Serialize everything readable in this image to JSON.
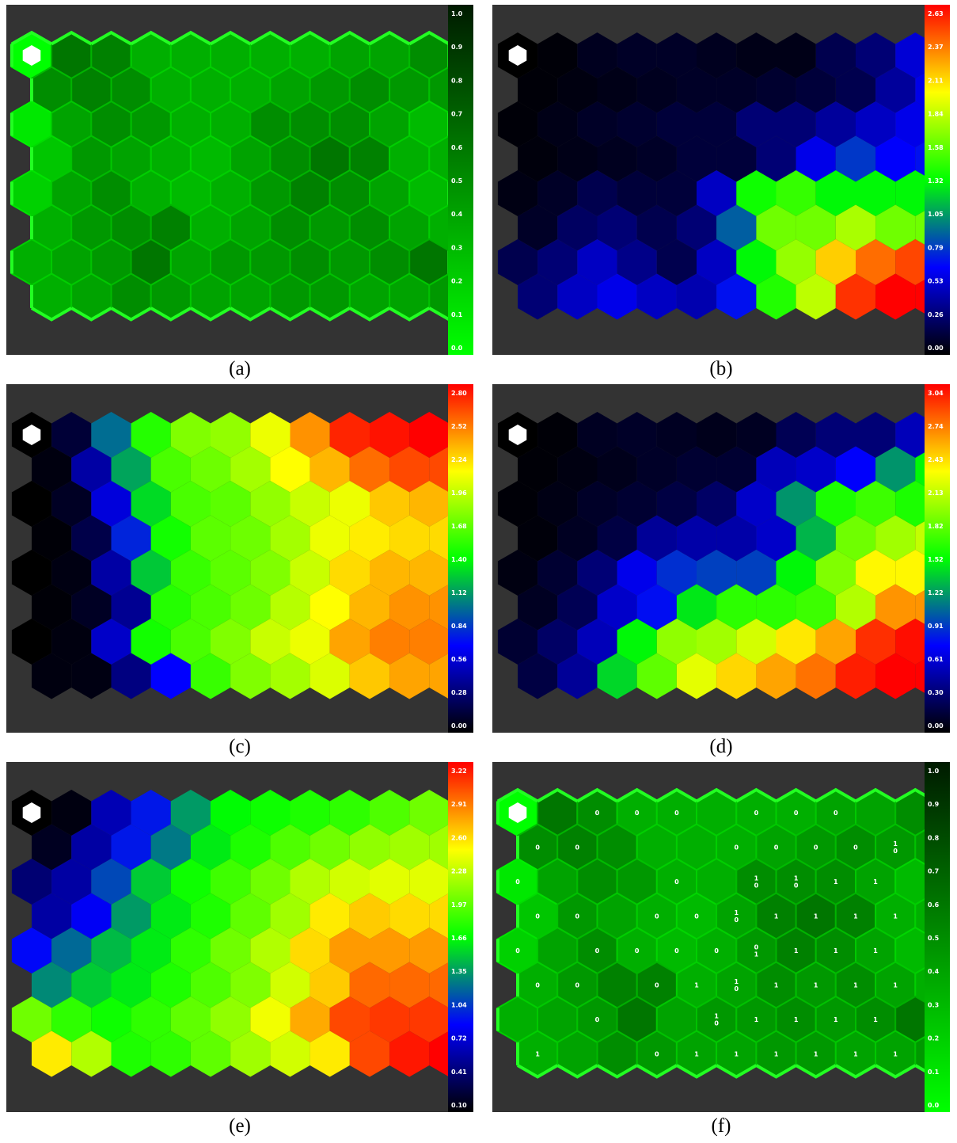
{
  "panels": [
    {
      "caption": "(a)",
      "kind": "umatrix",
      "scale": "green",
      "ticks": [
        "1.0",
        "0.9",
        "0.8",
        "0.7",
        "0.6",
        "0.5",
        "0.4",
        "0.3",
        "0.2",
        "0.1",
        "0.0"
      ],
      "grid": [
        [
          0.0,
          0.6,
          0.55,
          0.35,
          0.35,
          0.35,
          0.35,
          0.35,
          0.4,
          0.4,
          0.5
        ],
        [
          0.5,
          0.55,
          0.5,
          0.35,
          0.35,
          0.35,
          0.4,
          0.45,
          0.5,
          0.45,
          0.45
        ],
        [
          0.1,
          0.4,
          0.5,
          0.45,
          0.35,
          0.35,
          0.5,
          0.5,
          0.5,
          0.4,
          0.3
        ],
        [
          0.25,
          0.45,
          0.4,
          0.35,
          0.3,
          0.4,
          0.5,
          0.6,
          0.55,
          0.35,
          0.35
        ],
        [
          0.2,
          0.4,
          0.5,
          0.35,
          0.3,
          0.35,
          0.45,
          0.55,
          0.5,
          0.4,
          0.3
        ],
        [
          0.35,
          0.45,
          0.5,
          0.55,
          0.35,
          0.4,
          0.5,
          0.45,
          0.5,
          0.4,
          0.35
        ],
        [
          0.35,
          0.4,
          0.45,
          0.6,
          0.4,
          0.45,
          0.45,
          0.5,
          0.45,
          0.5,
          0.6
        ],
        [
          0.35,
          0.4,
          0.5,
          0.45,
          0.4,
          0.4,
          0.45,
          0.45,
          0.4,
          0.4,
          0.45
        ]
      ],
      "labels": []
    },
    {
      "caption": "(b)",
      "kind": "component",
      "scale": "jet",
      "ticks": [
        "2.63",
        "2.37",
        "2.11",
        "1.84",
        "1.58",
        "1.32",
        "1.05",
        "0.79",
        "0.53",
        "0.26",
        "0.00"
      ],
      "grid": [
        [
          0.0,
          0.02,
          0.08,
          0.1,
          0.1,
          0.08,
          0.06,
          0.06,
          0.2,
          0.3,
          0.55
        ],
        [
          0.02,
          0.04,
          0.06,
          0.08,
          0.1,
          0.1,
          0.12,
          0.15,
          0.2,
          0.4,
          0.6
        ],
        [
          0.02,
          0.06,
          0.1,
          0.12,
          0.15,
          0.15,
          0.3,
          0.3,
          0.4,
          0.5,
          0.6
        ],
        [
          0.03,
          0.06,
          0.08,
          0.1,
          0.15,
          0.15,
          0.3,
          0.6,
          0.8,
          0.65,
          0.7
        ],
        [
          0.05,
          0.1,
          0.2,
          0.15,
          0.15,
          0.5,
          1.35,
          1.45,
          1.3,
          1.3,
          1.3
        ],
        [
          0.1,
          0.25,
          0.3,
          0.2,
          0.3,
          0.9,
          1.6,
          1.6,
          1.75,
          1.6,
          1.6
        ],
        [
          0.2,
          0.3,
          0.5,
          0.35,
          0.2,
          0.5,
          1.3,
          1.7,
          2.1,
          2.35,
          2.45
        ],
        [
          0.3,
          0.5,
          0.6,
          0.5,
          0.45,
          0.7,
          1.4,
          1.8,
          2.5,
          2.63,
          2.63
        ]
      ],
      "labels": []
    },
    {
      "caption": "(c)",
      "kind": "component",
      "scale": "jet",
      "ticks": [
        "2.80",
        "2.52",
        "2.24",
        "1.96",
        "1.68",
        "1.40",
        "1.12",
        "0.84",
        "0.56",
        "0.28",
        "0.00"
      ],
      "grid": [
        [
          0.0,
          0.15,
          1.0,
          1.5,
          1.75,
          1.8,
          2.05,
          2.4,
          2.7,
          2.75,
          2.8
        ],
        [
          0.04,
          0.45,
          1.15,
          1.6,
          1.7,
          1.85,
          2.1,
          2.3,
          2.5,
          2.6,
          2.6
        ],
        [
          0.0,
          0.1,
          0.6,
          1.3,
          1.6,
          1.65,
          1.8,
          1.95,
          2.05,
          2.25,
          2.3
        ],
        [
          0.02,
          0.2,
          0.8,
          1.45,
          1.65,
          1.7,
          1.85,
          2.05,
          2.15,
          2.2,
          2.2
        ],
        [
          0.0,
          0.05,
          0.45,
          1.25,
          1.55,
          1.65,
          1.75,
          1.95,
          2.2,
          2.3,
          2.3
        ],
        [
          0.02,
          0.1,
          0.4,
          1.5,
          1.6,
          1.7,
          1.9,
          2.1,
          2.3,
          2.4,
          2.4
        ],
        [
          0.0,
          0.04,
          0.55,
          1.45,
          1.6,
          1.75,
          1.95,
          2.05,
          2.35,
          2.45,
          2.45
        ],
        [
          0.04,
          0.05,
          0.35,
          0.7,
          1.55,
          1.75,
          1.85,
          2.0,
          2.25,
          2.35,
          2.35
        ]
      ],
      "labels": []
    },
    {
      "caption": "(d)",
      "kind": "component",
      "scale": "jet",
      "ticks": [
        "3.04",
        "2.74",
        "2.43",
        "2.13",
        "1.82",
        "1.52",
        "1.22",
        "0.91",
        "0.61",
        "0.30",
        "0.00"
      ],
      "grid": [
        [
          0.0,
          0.02,
          0.1,
          0.12,
          0.1,
          0.08,
          0.1,
          0.25,
          0.35,
          0.35,
          0.55
        ],
        [
          0.02,
          0.05,
          0.08,
          0.12,
          0.15,
          0.15,
          0.55,
          0.6,
          0.75,
          1.2,
          1.5
        ],
        [
          0.02,
          0.06,
          0.12,
          0.15,
          0.2,
          0.3,
          0.6,
          1.2,
          1.6,
          1.7,
          1.6
        ],
        [
          0.03,
          0.1,
          0.2,
          0.45,
          0.5,
          0.5,
          0.6,
          1.3,
          1.85,
          2.0,
          2.1
        ],
        [
          0.05,
          0.15,
          0.35,
          0.7,
          0.9,
          0.95,
          0.95,
          1.5,
          1.9,
          2.3,
          2.3
        ],
        [
          0.1,
          0.25,
          0.6,
          0.8,
          1.45,
          1.65,
          1.65,
          1.7,
          2.05,
          2.6,
          2.6
        ],
        [
          0.15,
          0.3,
          0.55,
          1.5,
          1.95,
          2.0,
          2.15,
          2.35,
          2.55,
          2.9,
          3.0
        ],
        [
          0.2,
          0.45,
          1.4,
          1.8,
          2.2,
          2.4,
          2.55,
          2.7,
          2.95,
          3.04,
          3.04
        ]
      ],
      "labels": []
    },
    {
      "caption": "(e)",
      "kind": "component",
      "scale": "jet",
      "ticks": [
        "3.22",
        "2.91",
        "2.60",
        "2.28",
        "1.97",
        "1.66",
        "1.35",
        "1.04",
        "0.72",
        "0.41",
        "0.10"
      ],
      "grid": [
        [
          0.1,
          0.15,
          0.65,
          0.95,
          1.35,
          1.65,
          1.7,
          1.75,
          1.8,
          1.9,
          2.0
        ],
        [
          0.2,
          0.6,
          0.95,
          1.25,
          1.6,
          1.75,
          1.9,
          2.0,
          2.1,
          2.15,
          2.15
        ],
        [
          0.45,
          0.6,
          1.1,
          1.5,
          1.7,
          1.85,
          2.0,
          2.2,
          2.3,
          2.35,
          2.35
        ],
        [
          0.6,
          0.85,
          1.35,
          1.6,
          1.75,
          1.95,
          2.15,
          2.5,
          2.6,
          2.55,
          2.55
        ],
        [
          0.9,
          1.2,
          1.45,
          1.6,
          1.8,
          2.0,
          2.2,
          2.55,
          2.75,
          2.75,
          2.75
        ],
        [
          1.3,
          1.5,
          1.6,
          1.75,
          1.9,
          2.05,
          2.3,
          2.6,
          2.9,
          2.9,
          2.9
        ],
        [
          2.0,
          1.8,
          1.7,
          1.8,
          1.95,
          2.1,
          2.4,
          2.7,
          3.0,
          3.05,
          3.05
        ],
        [
          2.5,
          2.2,
          1.75,
          1.8,
          1.95,
          2.15,
          2.3,
          2.5,
          3.0,
          3.15,
          3.22
        ]
      ],
      "labels": []
    },
    {
      "caption": "(f)",
      "kind": "umatrix",
      "scale": "green",
      "ticks": [
        "1.0",
        "0.9",
        "0.8",
        "0.7",
        "0.6",
        "0.5",
        "0.4",
        "0.3",
        "0.2",
        "0.1",
        "0.0"
      ],
      "grid": [
        [
          0.0,
          0.6,
          0.5,
          0.35,
          0.35,
          0.35,
          0.35,
          0.35,
          0.4,
          0.4,
          0.5
        ],
        [
          0.5,
          0.55,
          0.5,
          0.35,
          0.35,
          0.35,
          0.4,
          0.45,
          0.5,
          0.45,
          0.45
        ],
        [
          0.1,
          0.4,
          0.5,
          0.45,
          0.35,
          0.35,
          0.5,
          0.5,
          0.5,
          0.4,
          0.3
        ],
        [
          0.25,
          0.45,
          0.4,
          0.35,
          0.3,
          0.4,
          0.55,
          0.6,
          0.55,
          0.35,
          0.35
        ],
        [
          0.2,
          0.4,
          0.5,
          0.35,
          0.3,
          0.35,
          0.45,
          0.55,
          0.5,
          0.4,
          0.3
        ],
        [
          0.35,
          0.45,
          0.55,
          0.55,
          0.35,
          0.4,
          0.5,
          0.45,
          0.5,
          0.4,
          0.35
        ],
        [
          0.35,
          0.4,
          0.45,
          0.6,
          0.4,
          0.45,
          0.45,
          0.5,
          0.45,
          0.5,
          0.6
        ],
        [
          0.35,
          0.4,
          0.5,
          0.45,
          0.4,
          0.4,
          0.45,
          0.45,
          0.4,
          0.4,
          0.45
        ]
      ],
      "labels": [
        {
          "row": 0,
          "col": 2,
          "text": [
            "0"
          ]
        },
        {
          "row": 0,
          "col": 3,
          "text": [
            "0"
          ]
        },
        {
          "row": 0,
          "col": 4,
          "text": [
            "0"
          ]
        },
        {
          "row": 0,
          "col": 6,
          "text": [
            "0"
          ]
        },
        {
          "row": 0,
          "col": 7,
          "text": [
            "0"
          ]
        },
        {
          "row": 0,
          "col": 8,
          "text": [
            "0"
          ]
        },
        {
          "row": 1,
          "col": 0,
          "text": [
            "0"
          ]
        },
        {
          "row": 1,
          "col": 1,
          "text": [
            "0"
          ]
        },
        {
          "row": 1,
          "col": 5,
          "text": [
            "0"
          ]
        },
        {
          "row": 1,
          "col": 6,
          "text": [
            "0"
          ]
        },
        {
          "row": 1,
          "col": 7,
          "text": [
            "0"
          ]
        },
        {
          "row": 1,
          "col": 8,
          "text": [
            "0"
          ]
        },
        {
          "row": 1,
          "col": 9,
          "text": [
            "1",
            "0"
          ]
        },
        {
          "row": 2,
          "col": 0,
          "text": [
            "0"
          ]
        },
        {
          "row": 2,
          "col": 4,
          "text": [
            "0"
          ]
        },
        {
          "row": 2,
          "col": 6,
          "text": [
            "1",
            "0"
          ]
        },
        {
          "row": 2,
          "col": 7,
          "text": [
            "1",
            "0"
          ]
        },
        {
          "row": 2,
          "col": 8,
          "text": [
            "1"
          ]
        },
        {
          "row": 2,
          "col": 9,
          "text": [
            "1"
          ]
        },
        {
          "row": 3,
          "col": 0,
          "text": [
            "0"
          ]
        },
        {
          "row": 3,
          "col": 1,
          "text": [
            "0"
          ]
        },
        {
          "row": 3,
          "col": 3,
          "text": [
            "0"
          ]
        },
        {
          "row": 3,
          "col": 4,
          "text": [
            "0"
          ]
        },
        {
          "row": 3,
          "col": 5,
          "text": [
            "1",
            "0"
          ]
        },
        {
          "row": 3,
          "col": 6,
          "text": [
            "1"
          ]
        },
        {
          "row": 3,
          "col": 7,
          "text": [
            "1"
          ]
        },
        {
          "row": 3,
          "col": 8,
          "text": [
            "1"
          ]
        },
        {
          "row": 3,
          "col": 9,
          "text": [
            "1"
          ]
        },
        {
          "row": 4,
          "col": 0,
          "text": [
            "0"
          ]
        },
        {
          "row": 4,
          "col": 2,
          "text": [
            "0"
          ]
        },
        {
          "row": 4,
          "col": 3,
          "text": [
            "0"
          ]
        },
        {
          "row": 4,
          "col": 4,
          "text": [
            "0"
          ]
        },
        {
          "row": 4,
          "col": 5,
          "text": [
            "0"
          ]
        },
        {
          "row": 4,
          "col": 6,
          "text": [
            "0",
            "1"
          ]
        },
        {
          "row": 4,
          "col": 7,
          "text": [
            "1"
          ]
        },
        {
          "row": 4,
          "col": 8,
          "text": [
            "1"
          ]
        },
        {
          "row": 4,
          "col": 9,
          "text": [
            "1"
          ]
        },
        {
          "row": 5,
          "col": 0,
          "text": [
            "0"
          ]
        },
        {
          "row": 5,
          "col": 1,
          "text": [
            "0"
          ]
        },
        {
          "row": 5,
          "col": 3,
          "text": [
            "0"
          ]
        },
        {
          "row": 5,
          "col": 4,
          "text": [
            "1"
          ]
        },
        {
          "row": 5,
          "col": 5,
          "text": [
            "1",
            "0"
          ]
        },
        {
          "row": 5,
          "col": 6,
          "text": [
            "1"
          ]
        },
        {
          "row": 5,
          "col": 7,
          "text": [
            "1"
          ]
        },
        {
          "row": 5,
          "col": 8,
          "text": [
            "1"
          ]
        },
        {
          "row": 5,
          "col": 9,
          "text": [
            "1"
          ]
        },
        {
          "row": 6,
          "col": 2,
          "text": [
            "0"
          ]
        },
        {
          "row": 6,
          "col": 5,
          "text": [
            "1",
            "0"
          ]
        },
        {
          "row": 6,
          "col": 6,
          "text": [
            "1"
          ]
        },
        {
          "row": 6,
          "col": 7,
          "text": [
            "1"
          ]
        },
        {
          "row": 6,
          "col": 8,
          "text": [
            "1"
          ]
        },
        {
          "row": 6,
          "col": 9,
          "text": [
            "1"
          ]
        },
        {
          "row": 7,
          "col": 0,
          "text": [
            "1"
          ]
        },
        {
          "row": 7,
          "col": 3,
          "text": [
            "0"
          ]
        },
        {
          "row": 7,
          "col": 4,
          "text": [
            "1"
          ]
        },
        {
          "row": 7,
          "col": 5,
          "text": [
            "1"
          ]
        },
        {
          "row": 7,
          "col": 6,
          "text": [
            "1"
          ]
        },
        {
          "row": 7,
          "col": 7,
          "text": [
            "1"
          ]
        },
        {
          "row": 7,
          "col": 8,
          "text": [
            "1"
          ]
        },
        {
          "row": 7,
          "col": 9,
          "text": [
            "1"
          ]
        },
        {
          "row": 7,
          "col": 10,
          "text": [
            "1"
          ]
        }
      ]
    }
  ],
  "chart_data": [
    {
      "type": "heatmap",
      "caption": "(a)",
      "colorbar_range": [
        0.0,
        1.0
      ],
      "colorbar_colors": [
        "#00ff00",
        "#001a00"
      ],
      "grid_shape": [
        8,
        11
      ]
    },
    {
      "type": "heatmap",
      "caption": "(b)",
      "colorbar_range": [
        0.0,
        2.63
      ],
      "colorbar_colors": [
        "#000000",
        "#0000ff",
        "#00ff00",
        "#ffff00",
        "#ff0000"
      ],
      "grid_shape": [
        8,
        11
      ]
    },
    {
      "type": "heatmap",
      "caption": "(c)",
      "colorbar_range": [
        0.0,
        2.8
      ],
      "colorbar_colors": [
        "#000000",
        "#0000ff",
        "#00ff00",
        "#ffff00",
        "#ff0000"
      ],
      "grid_shape": [
        8,
        11
      ]
    },
    {
      "type": "heatmap",
      "caption": "(d)",
      "colorbar_range": [
        0.0,
        3.04
      ],
      "colorbar_colors": [
        "#000000",
        "#0000ff",
        "#00ff00",
        "#ffff00",
        "#ff0000"
      ],
      "grid_shape": [
        8,
        11
      ]
    },
    {
      "type": "heatmap",
      "caption": "(e)",
      "colorbar_range": [
        0.1,
        3.22
      ],
      "colorbar_colors": [
        "#000000",
        "#0000ff",
        "#00ff00",
        "#ffff00",
        "#ff0000"
      ],
      "grid_shape": [
        8,
        11
      ]
    },
    {
      "type": "heatmap",
      "caption": "(f)",
      "colorbar_range": [
        0.0,
        1.0
      ],
      "colorbar_colors": [
        "#00ff00",
        "#001a00"
      ],
      "grid_shape": [
        8,
        11
      ]
    }
  ],
  "colors": {
    "panel_bg": "#333333",
    "umatrix_edge": "#22ff22",
    "marker": "#ffffff"
  }
}
